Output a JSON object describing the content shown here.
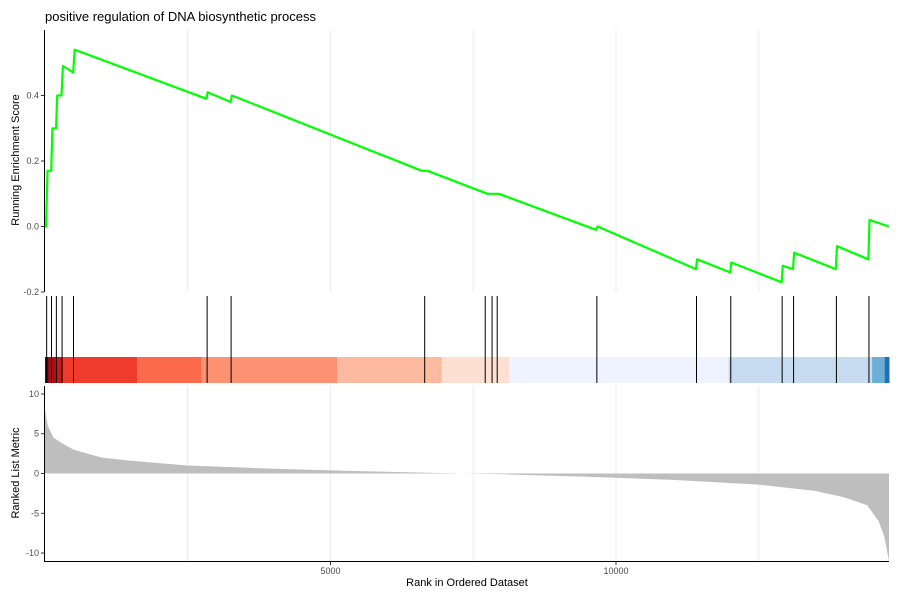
{
  "chart_data": {
    "type": "line",
    "title": "positive regulation of DNA biosynthetic process",
    "xlabel": "Rank in Ordered Dataset",
    "x_ticks": [
      5000,
      10000
    ],
    "x_grid": [
      2500,
      5000,
      7500,
      10000,
      12500
    ],
    "xlim": [
      1,
      14781
    ],
    "grid": true,
    "colors": {
      "es_line": "#00ff00",
      "ranked_fill": "#bebebe",
      "gene_tick": "#000000",
      "heat": [
        "#67000d",
        "#a50f15",
        "#cb181d",
        "#ef3b2c",
        "#fb6a4a",
        "#fc9272",
        "#fcbba1",
        "#fee0d2",
        "#eff3ff",
        "#c6dbef",
        "#6baed6",
        "#2171b5",
        "#08519c"
      ]
    },
    "panels": {
      "enrichment": {
        "ylabel": "Running Enrichment Score",
        "ylim": [
          -0.2,
          0.6
        ],
        "y_ticks": [
          -0.2,
          0.0,
          0.2,
          0.4
        ],
        "y_tick_labels": [
          "-0.2",
          "0.0",
          "0.2",
          "0.4"
        ],
        "points": [
          [
            0,
            0.0
          ],
          [
            20,
            0.0
          ],
          [
            45,
            0.17
          ],
          [
            110,
            0.17
          ],
          [
            130,
            0.3
          ],
          [
            195,
            0.3
          ],
          [
            215,
            0.4
          ],
          [
            290,
            0.4
          ],
          [
            315,
            0.49
          ],
          [
            495,
            0.47
          ],
          [
            520,
            0.54
          ],
          [
            2830,
            0.39
          ],
          [
            2850,
            0.41
          ],
          [
            3250,
            0.38
          ],
          [
            3275,
            0.4
          ],
          [
            6600,
            0.17
          ],
          [
            6700,
            0.17
          ],
          [
            7750,
            0.1
          ],
          [
            7950,
            0.1
          ],
          [
            9650,
            -0.01
          ],
          [
            9680,
            0.0
          ],
          [
            11400,
            -0.13
          ],
          [
            11420,
            -0.1
          ],
          [
            12000,
            -0.14
          ],
          [
            12020,
            -0.11
          ],
          [
            12900,
            -0.17
          ],
          [
            12920,
            -0.12
          ],
          [
            13100,
            -0.13
          ],
          [
            13120,
            -0.08
          ],
          [
            13850,
            -0.13
          ],
          [
            13870,
            -0.06
          ],
          [
            14420,
            -0.1
          ],
          [
            14440,
            0.02
          ],
          [
            14781,
            0.0
          ]
        ]
      },
      "hits": {
        "positions": [
          30,
          115,
          200,
          300,
          500,
          2840,
          3260,
          6650,
          7710,
          7830,
          7920,
          9665,
          11410,
          12010,
          12910,
          13110,
          13860,
          14430
        ]
      },
      "ranked": {
        "ylabel": "Ranked List Metric",
        "ylim": [
          -11,
          11
        ],
        "y_ticks": [
          10,
          5,
          0,
          -5,
          -10
        ],
        "y_tick_labels": [
          "10",
          "5",
          "0",
          "-5",
          "-10"
        ],
        "points": [
          [
            0,
            8
          ],
          [
            50,
            6
          ],
          [
            150,
            4.5
          ],
          [
            300,
            3.8
          ],
          [
            500,
            3
          ],
          [
            1000,
            2
          ],
          [
            1500,
            1.6
          ],
          [
            2500,
            1
          ],
          [
            4000,
            0.6
          ],
          [
            5500,
            0.3
          ],
          [
            7000,
            0.05
          ],
          [
            8000,
            -0.1
          ],
          [
            9500,
            -0.4
          ],
          [
            11000,
            -0.8
          ],
          [
            12500,
            -1.4
          ],
          [
            13500,
            -2.2
          ],
          [
            14000,
            -3
          ],
          [
            14400,
            -4
          ],
          [
            14600,
            -6
          ],
          [
            14700,
            -8
          ],
          [
            14781,
            -11
          ]
        ]
      }
    }
  }
}
